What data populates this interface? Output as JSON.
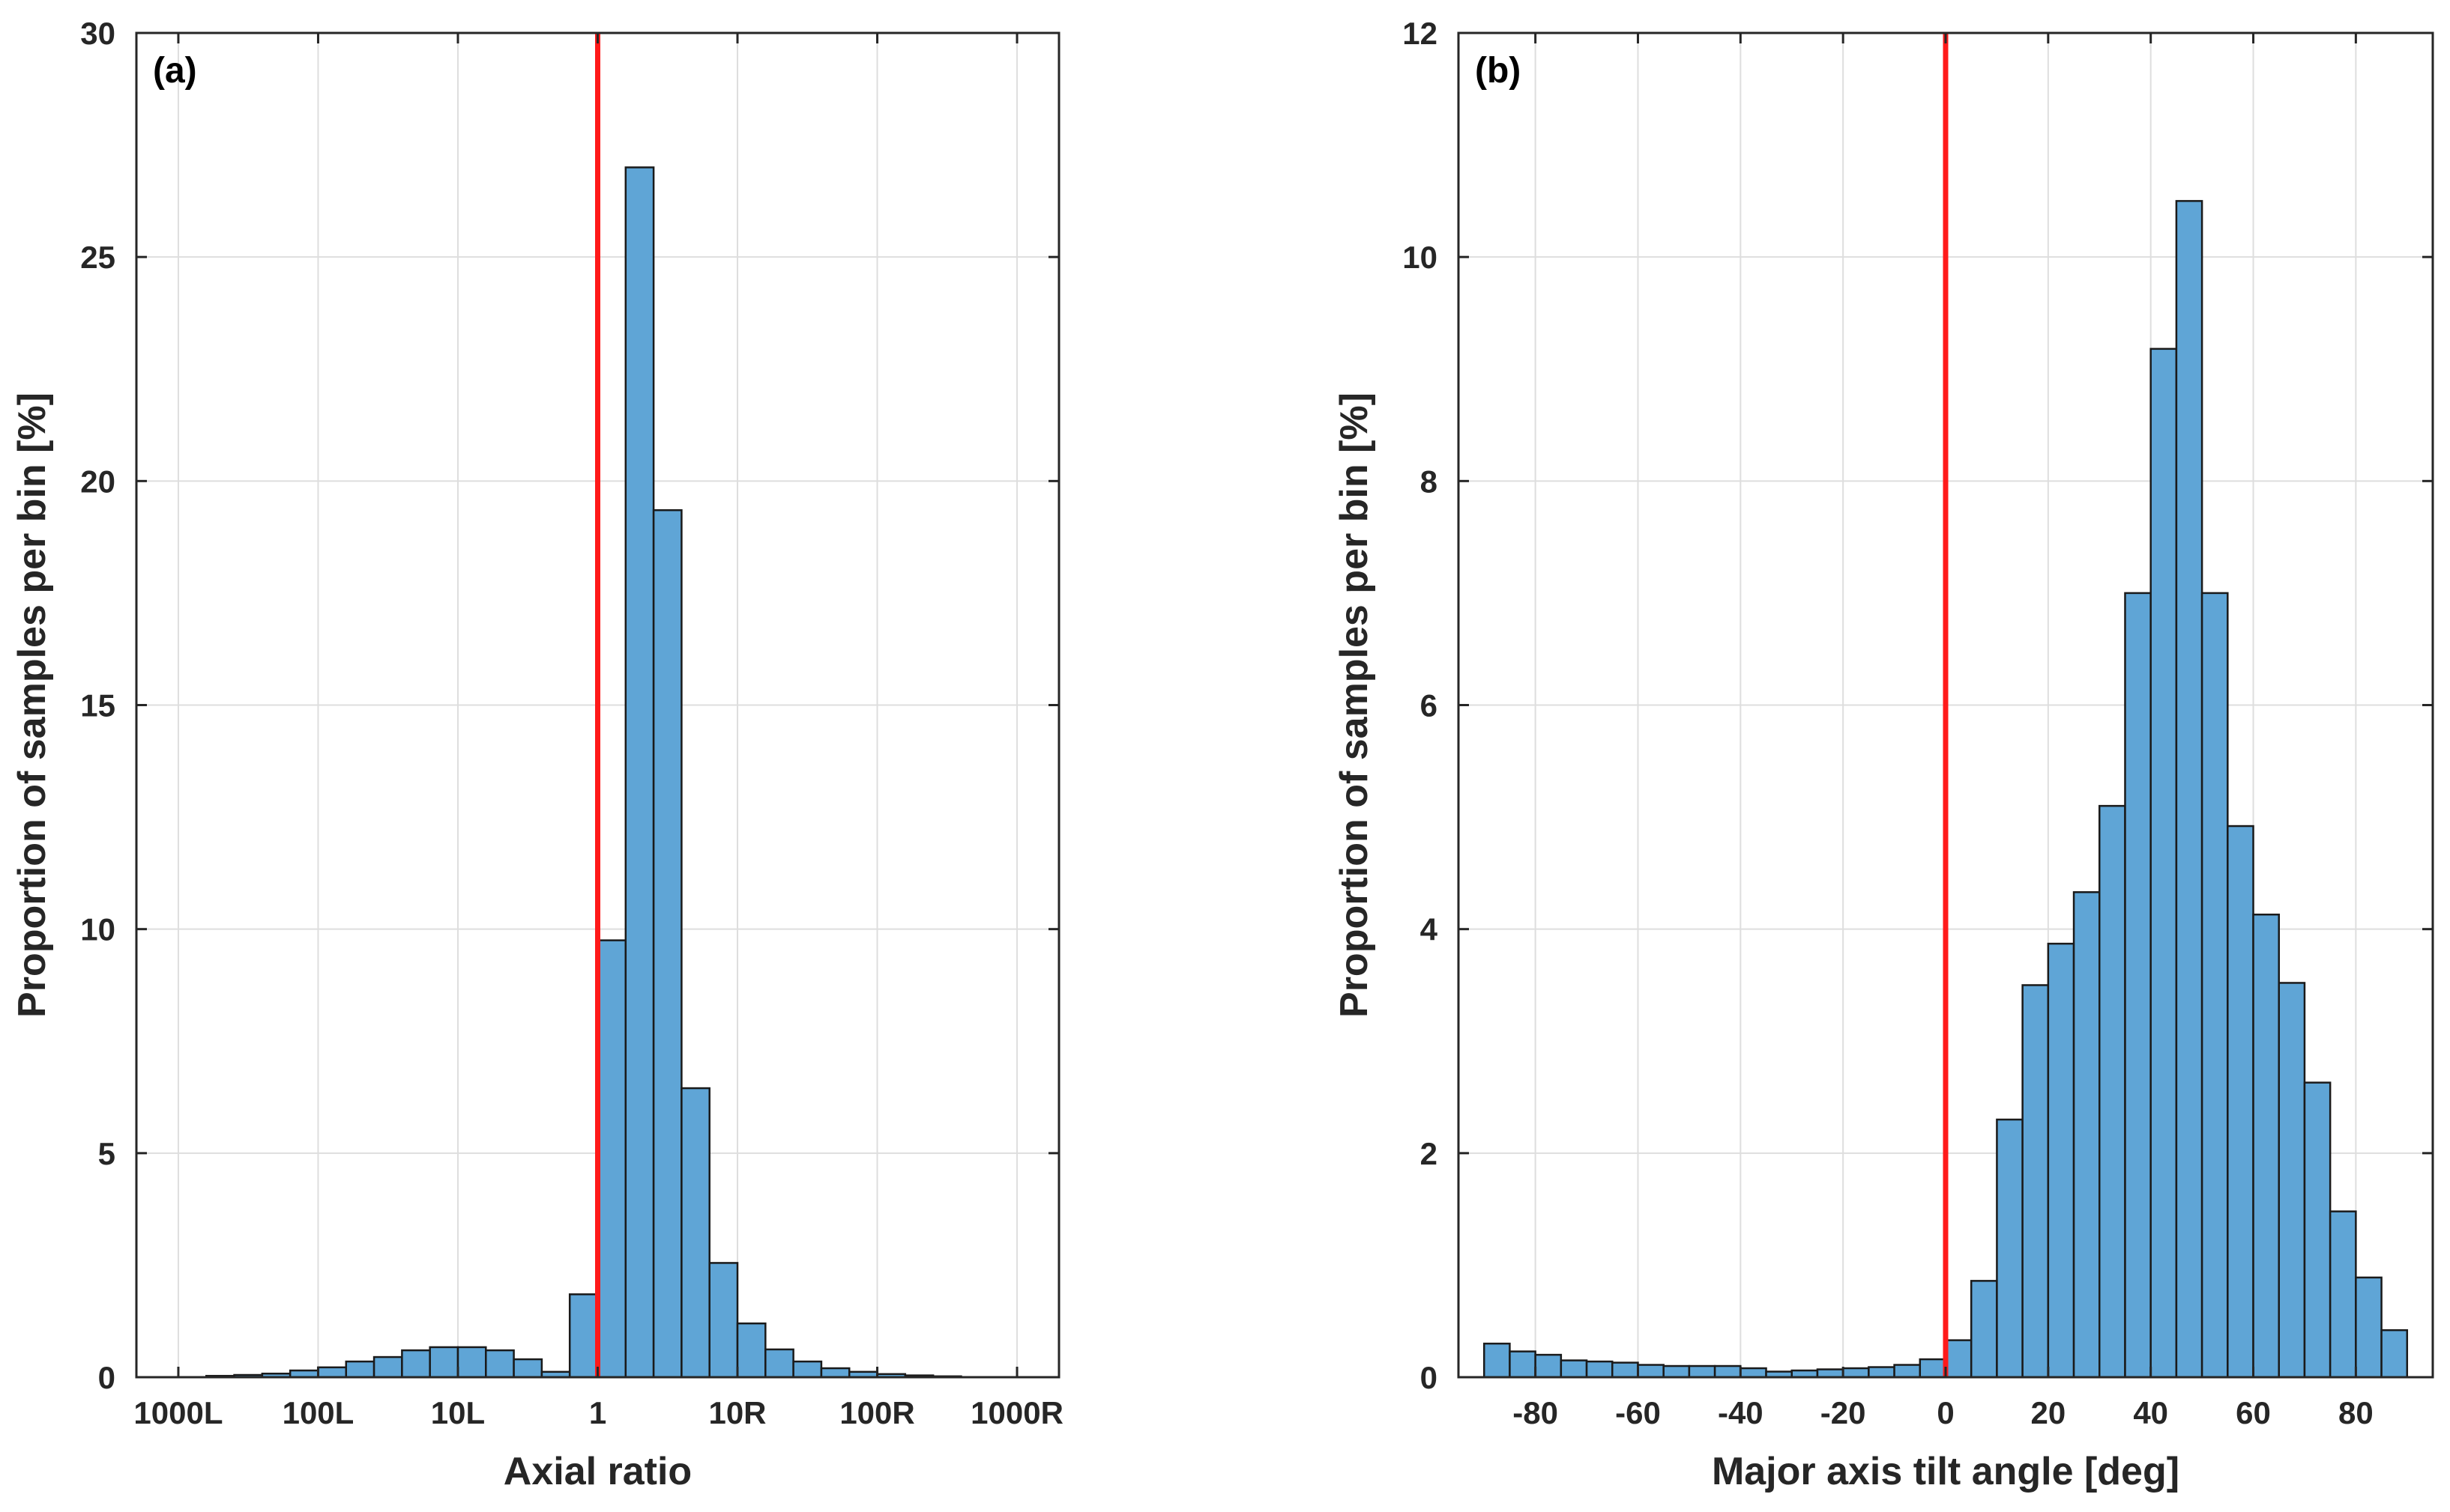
{
  "chart_data": [
    {
      "type": "bar",
      "panel_label": "(a)",
      "xlabel": "Axial ratio",
      "ylabel": "Proportion of samples per bin [%]",
      "ylim": [
        0,
        30
      ],
      "yticks": [
        0,
        5,
        10,
        15,
        20,
        25,
        30
      ],
      "xlim": [
        -3.3,
        3.3
      ],
      "xtick_values": [
        -3,
        -2,
        -1,
        0,
        1,
        2,
        3
      ],
      "xtick_labels": [
        "1000L",
        "100L",
        "10L",
        "1",
        "10R",
        "100R",
        "1000R"
      ],
      "reference_line_x": 0,
      "reference_line_color": "#ff1a1a",
      "bar_color": "#5fa5d6",
      "grid": true,
      "bin_width": 0.2,
      "bin_starts": [
        -2.8,
        -2.6,
        -2.4,
        -2.2,
        -2.0,
        -1.8,
        -1.6,
        -1.4,
        -1.2,
        -1.0,
        -0.8,
        -0.6,
        -0.4,
        -0.2,
        0.0,
        0.2,
        0.4,
        0.6,
        0.8,
        1.0,
        1.2,
        1.4,
        1.6,
        1.8,
        2.0,
        2.2,
        2.4
      ],
      "values": [
        0.03,
        0.05,
        0.08,
        0.15,
        0.22,
        0.35,
        0.45,
        0.6,
        0.67,
        0.67,
        0.6,
        0.4,
        0.12,
        1.85,
        9.75,
        27.0,
        19.35,
        6.45,
        2.55,
        1.2,
        0.62,
        0.35,
        0.2,
        0.12,
        0.07,
        0.04,
        0.02
      ]
    },
    {
      "type": "bar",
      "panel_label": "(b)",
      "xlabel": "Major axis tilt angle [deg]",
      "ylabel": "Proportion of samples per bin [%]",
      "ylim": [
        0,
        12
      ],
      "yticks": [
        0,
        2,
        4,
        6,
        8,
        10,
        12
      ],
      "xlim": [
        -95,
        95
      ],
      "xtick_values": [
        -80,
        -60,
        -40,
        -20,
        0,
        20,
        40,
        60,
        80
      ],
      "xtick_labels": [
        "-80",
        "-60",
        "-40",
        "-20",
        "0",
        "20",
        "40",
        "60",
        "80"
      ],
      "reference_line_x": 0,
      "reference_line_color": "#ff1a1a",
      "bar_color": "#5fa5d6",
      "grid": true,
      "bin_width": 5,
      "bin_starts": [
        -90,
        -85,
        -80,
        -75,
        -70,
        -65,
        -60,
        -55,
        -50,
        -45,
        -40,
        -35,
        -30,
        -25,
        -20,
        -15,
        -10,
        -5,
        0,
        5,
        10,
        15,
        20,
        25,
        30,
        35,
        40,
        45,
        50,
        55,
        60,
        65,
        70,
        75,
        80,
        85
      ],
      "values": [
        0.3,
        0.23,
        0.2,
        0.15,
        0.14,
        0.13,
        0.11,
        0.1,
        0.1,
        0.1,
        0.08,
        0.05,
        0.06,
        0.07,
        0.08,
        0.09,
        0.11,
        0.16,
        0.33,
        0.86,
        2.3,
        3.5,
        3.87,
        4.33,
        5.1,
        7.0,
        9.18,
        10.5,
        7.0,
        4.92,
        4.13,
        3.52,
        2.63,
        1.48,
        0.89,
        0.42
      ]
    }
  ]
}
